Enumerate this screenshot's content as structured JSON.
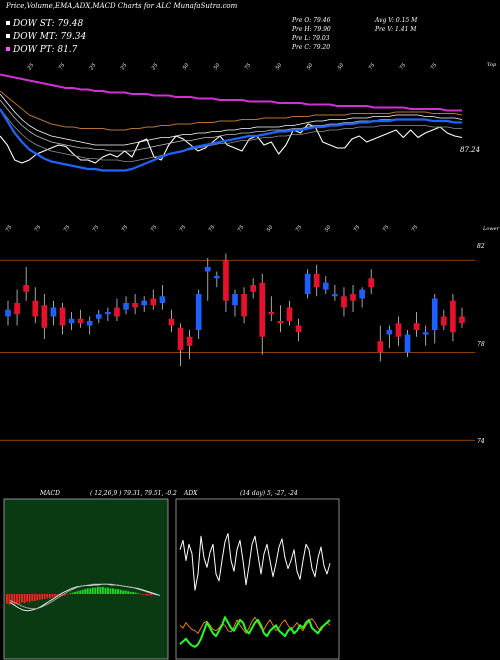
{
  "header": {
    "caption": "Price,Volume,EMA,ADX,MACD Charts for ALC MunafaSutra.com",
    "legend": [
      {
        "label": "DOW ST: 79.48",
        "color": "#ffffff"
      },
      {
        "label": "DOW MT: 79.34",
        "color": "#ffffff"
      },
      {
        "label": "DOW PT: 81.7",
        "color": "#ff55ff"
      }
    ],
    "quote": {
      "open": "Pre   O: 79.46",
      "high": "Pre   H: 79.90",
      "low": "Pre   L: 79.03",
      "close": "Pre   C: 79.20",
      "avg_volume": "Avg V: 0.15 M",
      "prev_volume": "Pre   V: 1.41 M"
    }
  },
  "colors": {
    "up": "#1f5fff",
    "down": "#e8102a",
    "macd_up": "#19e61a",
    "macd_down": "#ff2020",
    "adx_green": "#20ff20",
    "adx_orange": "#ff8c00",
    "level_line": "#b3560a",
    "pt_line": "#d42fd4"
  },
  "chart_data": [
    {
      "type": "line",
      "name": "indicator panel",
      "top_label": "Top",
      "bottom_label": "Lower",
      "value_label": "87.24",
      "top_tick_labels": [
        "25",
        "75",
        "25",
        "25",
        "25",
        "50",
        "50",
        "75",
        "50",
        "50",
        "50",
        "75",
        "75",
        "75"
      ],
      "bottom_tick_labels": [
        "75",
        "75",
        "75",
        "75",
        "75",
        "75",
        "75",
        "75",
        "75",
        "50",
        "75",
        "50",
        "75",
        "75",
        "75"
      ],
      "ylim": [
        0,
        100
      ],
      "series": [
        {
          "values": [
            56,
            50,
            40,
            38,
            40,
            44,
            46,
            48,
            50,
            49,
            44,
            40,
            40,
            38,
            42,
            44,
            42,
            46,
            42,
            52,
            54,
            42,
            40,
            50,
            56,
            54,
            50,
            46,
            48,
            52,
            56,
            50,
            48,
            46,
            54,
            56,
            50,
            52,
            44,
            50,
            60,
            58,
            64,
            62,
            52,
            50,
            48,
            48,
            54,
            56,
            52,
            54,
            56,
            58,
            60,
            55,
            60,
            55,
            58,
            60,
            62,
            58,
            56,
            55
          ]
        },
        {
          "values": [
            84,
            78,
            72,
            67,
            63,
            60,
            58,
            56,
            55,
            54,
            53,
            52,
            51,
            50,
            50,
            50,
            50,
            50,
            51,
            52,
            53,
            54,
            55,
            55,
            56,
            57,
            57,
            58,
            58,
            59,
            59,
            60,
            60,
            61,
            61,
            62,
            62,
            62,
            62,
            63,
            63,
            64,
            65,
            66,
            66,
            67,
            67,
            67,
            68,
            68,
            68,
            69,
            69,
            69,
            70,
            70,
            70,
            70,
            69,
            69,
            68,
            68,
            68,
            67
          ]
        },
        {
          "values": [
            80,
            74,
            68,
            63,
            59,
            56,
            54,
            52,
            51,
            50,
            49,
            48,
            48,
            47,
            47,
            46,
            46,
            46,
            46,
            47,
            48,
            49,
            50,
            51,
            52,
            53,
            53,
            54,
            55,
            55,
            56,
            57,
            57,
            58,
            58,
            59,
            59,
            60,
            60,
            60,
            61,
            61,
            62,
            63,
            63,
            64,
            64,
            65,
            65,
            66,
            66,
            66,
            67,
            67,
            67,
            67,
            67,
            67,
            67,
            66,
            66,
            66,
            65,
            65
          ]
        },
        {
          "values": [
            74,
            68,
            62,
            57,
            53,
            50,
            48,
            46,
            45,
            44,
            43,
            42,
            41,
            41,
            40,
            40,
            40,
            39,
            39,
            40,
            41,
            42,
            43,
            44,
            45,
            46,
            47,
            48,
            49,
            50,
            51,
            51,
            52,
            53,
            53,
            54,
            55,
            55,
            56,
            56,
            57,
            57,
            58,
            59,
            59,
            60,
            60,
            61,
            61,
            62,
            62,
            62,
            63,
            63,
            63,
            63,
            63,
            63,
            63,
            62,
            62,
            62,
            61,
            61
          ]
        },
        {
          "values": [
            74,
            66,
            58,
            52,
            47,
            44,
            41,
            39,
            38,
            37,
            36,
            35,
            34,
            34,
            33,
            33,
            33,
            33,
            34,
            36,
            38,
            40,
            42,
            44,
            45,
            46,
            48,
            49,
            50,
            51,
            52,
            53,
            54,
            55,
            56,
            56,
            57,
            58,
            59,
            59,
            60,
            60,
            61,
            62,
            62,
            63,
            63,
            64,
            64,
            65,
            65,
            66,
            66,
            66,
            67,
            67,
            67,
            67,
            67,
            66,
            66,
            66,
            65,
            65
          ]
        },
        {
          "values": [
            86,
            82,
            78,
            74,
            70,
            68,
            66,
            64,
            63,
            62,
            62,
            61,
            61,
            61,
            61,
            60,
            60,
            60,
            61,
            61,
            62,
            62,
            63,
            63,
            64,
            64,
            64,
            65,
            65,
            65,
            66,
            66,
            66,
            67,
            67,
            67,
            68,
            68,
            68,
            68,
            69,
            69,
            69,
            70,
            70,
            70,
            70,
            70,
            71,
            71,
            71,
            71,
            71,
            71,
            72,
            72,
            72,
            72,
            72,
            71,
            71,
            71,
            71,
            70
          ]
        },
        {
          "values": [
            97,
            96,
            95,
            94,
            93,
            92,
            91,
            90,
            89,
            88,
            88,
            87,
            87,
            86,
            86,
            85,
            85,
            85,
            84,
            84,
            84,
            83,
            83,
            83,
            82,
            82,
            82,
            81,
            81,
            81,
            80,
            80,
            80,
            80,
            79,
            79,
            79,
            79,
            78,
            78,
            78,
            78,
            77,
            77,
            77,
            77,
            76,
            76,
            76,
            76,
            76,
            75,
            75,
            75,
            75,
            75,
            74,
            74,
            74,
            74,
            74,
            73,
            73,
            73
          ]
        }
      ]
    },
    {
      "type": "candlestick",
      "name": "price panel",
      "price_labels": [
        "82",
        "78",
        "74"
      ],
      "ylim": [
        73,
        83
      ],
      "candles": [
        {
          "o": 79.6,
          "h": 80.3,
          "l": 79.2,
          "c": 79.9
        },
        {
          "o": 80.2,
          "h": 80.8,
          "l": 79.2,
          "c": 79.7
        },
        {
          "o": 81.0,
          "h": 81.8,
          "l": 80.3,
          "c": 80.7
        },
        {
          "o": 80.3,
          "h": 80.9,
          "l": 79.3,
          "c": 79.6
        },
        {
          "o": 80.1,
          "h": 80.6,
          "l": 78.6,
          "c": 79.1
        },
        {
          "o": 79.6,
          "h": 80.3,
          "l": 79.2,
          "c": 80.0
        },
        {
          "o": 80.0,
          "h": 80.2,
          "l": 78.8,
          "c": 79.2
        },
        {
          "o": 79.3,
          "h": 79.8,
          "l": 79.0,
          "c": 79.5
        },
        {
          "o": 79.5,
          "h": 79.9,
          "l": 79.1,
          "c": 79.3
        },
        {
          "o": 79.2,
          "h": 79.6,
          "l": 78.8,
          "c": 79.4
        },
        {
          "o": 79.5,
          "h": 79.9,
          "l": 79.3,
          "c": 79.7
        },
        {
          "o": 79.7,
          "h": 80.0,
          "l": 79.4,
          "c": 79.8
        },
        {
          "o": 80.0,
          "h": 80.4,
          "l": 79.4,
          "c": 79.6
        },
        {
          "o": 79.9,
          "h": 80.5,
          "l": 79.7,
          "c": 80.2
        },
        {
          "o": 80.2,
          "h": 80.6,
          "l": 79.7,
          "c": 80.0
        },
        {
          "o": 80.1,
          "h": 80.5,
          "l": 79.8,
          "c": 80.3
        },
        {
          "o": 80.4,
          "h": 80.8,
          "l": 79.9,
          "c": 80.1
        },
        {
          "o": 80.2,
          "h": 81.0,
          "l": 79.9,
          "c": 80.5
        },
        {
          "o": 79.5,
          "h": 79.9,
          "l": 78.9,
          "c": 79.2
        },
        {
          "o": 79.1,
          "h": 79.3,
          "l": 77.4,
          "c": 78.1
        },
        {
          "o": 78.7,
          "h": 79.0,
          "l": 77.7,
          "c": 78.3
        },
        {
          "o": 79.0,
          "h": 80.8,
          "l": 78.6,
          "c": 80.6
        },
        {
          "o": 81.6,
          "h": 82.2,
          "l": 80.3,
          "c": 81.8
        },
        {
          "o": 81.3,
          "h": 81.6,
          "l": 80.9,
          "c": 81.4
        },
        {
          "o": 82.1,
          "h": 82.4,
          "l": 79.8,
          "c": 80.3
        },
        {
          "o": 80.1,
          "h": 80.8,
          "l": 79.6,
          "c": 80.6
        },
        {
          "o": 80.6,
          "h": 80.9,
          "l": 79.3,
          "c": 79.6
        },
        {
          "o": 81.0,
          "h": 81.3,
          "l": 80.4,
          "c": 80.7
        },
        {
          "o": 81.1,
          "h": 81.5,
          "l": 77.9,
          "c": 78.7
        },
        {
          "o": 79.8,
          "h": 80.5,
          "l": 79.4,
          "c": 79.7
        },
        {
          "o": 79.4,
          "h": 80.1,
          "l": 78.9,
          "c": 79.3
        },
        {
          "o": 80.0,
          "h": 80.3,
          "l": 79.2,
          "c": 79.4
        },
        {
          "o": 79.2,
          "h": 79.5,
          "l": 78.5,
          "c": 78.9
        },
        {
          "o": 80.6,
          "h": 81.7,
          "l": 80.4,
          "c": 81.5
        },
        {
          "o": 81.5,
          "h": 81.9,
          "l": 80.5,
          "c": 80.9
        },
        {
          "o": 80.8,
          "h": 81.4,
          "l": 80.6,
          "c": 81.1
        },
        {
          "o": 80.5,
          "h": 81.0,
          "l": 80.3,
          "c": 80.6
        },
        {
          "o": 80.5,
          "h": 80.9,
          "l": 79.6,
          "c": 80.0
        },
        {
          "o": 80.6,
          "h": 81.0,
          "l": 79.8,
          "c": 80.3
        },
        {
          "o": 80.4,
          "h": 80.9,
          "l": 80.0,
          "c": 80.8
        },
        {
          "o": 81.3,
          "h": 81.7,
          "l": 80.6,
          "c": 80.9
        },
        {
          "o": 78.5,
          "h": 79.2,
          "l": 77.6,
          "c": 78.0
        },
        {
          "o": 78.8,
          "h": 79.2,
          "l": 78.2,
          "c": 79.0
        },
        {
          "o": 79.3,
          "h": 79.6,
          "l": 78.3,
          "c": 78.7
        },
        {
          "o": 78.0,
          "h": 79.0,
          "l": 77.8,
          "c": 78.8
        },
        {
          "o": 79.3,
          "h": 79.8,
          "l": 78.7,
          "c": 79.0
        },
        {
          "o": 78.8,
          "h": 79.2,
          "l": 78.3,
          "c": 78.9
        },
        {
          "o": 79.0,
          "h": 80.6,
          "l": 78.4,
          "c": 80.4
        },
        {
          "o": 79.6,
          "h": 79.9,
          "l": 79.0,
          "c": 79.2
        },
        {
          "o": 80.3,
          "h": 80.6,
          "l": 78.5,
          "c": 78.9
        },
        {
          "o": 79.6,
          "h": 80.0,
          "l": 79.1,
          "c": 79.3
        }
      ],
      "level_lines": [
        82.1,
        78.0,
        74.1
      ]
    },
    {
      "type": "bar",
      "name": "MACD panel",
      "label": "MACD",
      "params": "( 12,26,9 ) 79.31,  79.51,  -0.2",
      "ylim": [
        -4,
        4
      ],
      "histogram": [
        -1.4,
        -1.5,
        -1.4,
        -1.5,
        -1.3,
        -1.4,
        -1.2,
        -1.3,
        -1.1,
        -1.2,
        -1.0,
        -1.0,
        -0.9,
        -0.8,
        -0.8,
        -0.7,
        -0.6,
        -0.6,
        -0.5,
        -0.4,
        -0.3,
        -0.3,
        -0.2,
        -0.2,
        -0.1,
        0.1,
        0.2,
        0.3,
        0.4,
        0.5,
        0.6,
        0.7,
        0.8,
        0.8,
        0.9,
        0.9,
        1.0,
        1.0,
        1.0,
        0.9,
        0.9,
        0.8,
        0.8,
        0.7,
        0.7,
        0.6,
        0.5,
        0.5,
        0.4,
        0.3,
        0.3,
        0.2,
        0.1,
        -0.1,
        -0.1,
        -0.2,
        -0.2,
        -0.2
      ],
      "series": [
        {
          "values": [
            -1.2,
            -1.6,
            -2.0,
            -2.3,
            -2.4,
            -2.3,
            -2.1,
            -1.8,
            -1.4,
            -1.0,
            -0.6,
            -0.2,
            0.2,
            0.5,
            0.8,
            1.0,
            1.1,
            1.2,
            1.2,
            1.3,
            1.3,
            1.4,
            1.4,
            1.3,
            1.3,
            1.2,
            1.1,
            1.0,
            0.9,
            0.8,
            0.6,
            0.4,
            0.2,
            0.0,
            -0.2
          ]
        },
        {
          "values": [
            -0.9,
            -1.2,
            -1.5,
            -1.8,
            -2.0,
            -2.1,
            -2.1,
            -1.9,
            -1.6,
            -1.3,
            -0.9,
            -0.5,
            -0.1,
            0.3,
            0.6,
            0.9,
            1.1,
            1.2,
            1.3,
            1.4,
            1.4,
            1.4,
            1.4,
            1.4,
            1.3,
            1.2,
            1.1,
            1.0,
            0.9,
            0.7,
            0.5,
            0.3,
            0.1,
            -0.1,
            -0.2
          ]
        }
      ]
    },
    {
      "type": "line",
      "name": "ADX panel",
      "label": "ADX",
      "params": "(14 day) 5,  -27,  -24",
      "ylim": [
        0,
        100
      ],
      "series": [
        {
          "values": [
            78,
            85,
            70,
            82,
            75,
            48,
            60,
            88,
            72,
            65,
            76,
            82,
            60,
            55,
            70,
            84,
            90,
            70,
            62,
            78,
            85,
            70,
            52,
            66,
            82,
            88,
            74,
            60,
            75,
            82,
            70,
            58,
            68,
            80,
            86,
            72,
            64,
            70,
            78,
            62,
            56,
            70,
            82,
            78,
            64,
            58,
            72,
            80,
            66,
            60,
            68
          ]
        },
        {
          "values": [
            22,
            20,
            24,
            21,
            19,
            18,
            16,
            20,
            24,
            25,
            22,
            19,
            18,
            20,
            23,
            22,
            18,
            17,
            21,
            26,
            22,
            19,
            16,
            20,
            25,
            28,
            24,
            20,
            19,
            23,
            26,
            22,
            18,
            20,
            24,
            26,
            22,
            19,
            21,
            24,
            20,
            18,
            22,
            25,
            27,
            24,
            20,
            18,
            22,
            24,
            22
          ]
        },
        {
          "values": [
            8,
            10,
            12,
            9,
            7,
            6,
            8,
            12,
            18,
            24,
            20,
            16,
            14,
            18,
            22,
            28,
            24,
            20,
            18,
            22,
            26,
            24,
            18,
            16,
            20,
            24,
            26,
            22,
            16,
            14,
            18,
            20,
            22,
            18,
            16,
            14,
            18,
            20,
            16,
            18,
            22,
            20,
            24,
            26,
            20,
            18,
            16,
            20,
            22,
            24,
            26
          ]
        }
      ]
    }
  ]
}
